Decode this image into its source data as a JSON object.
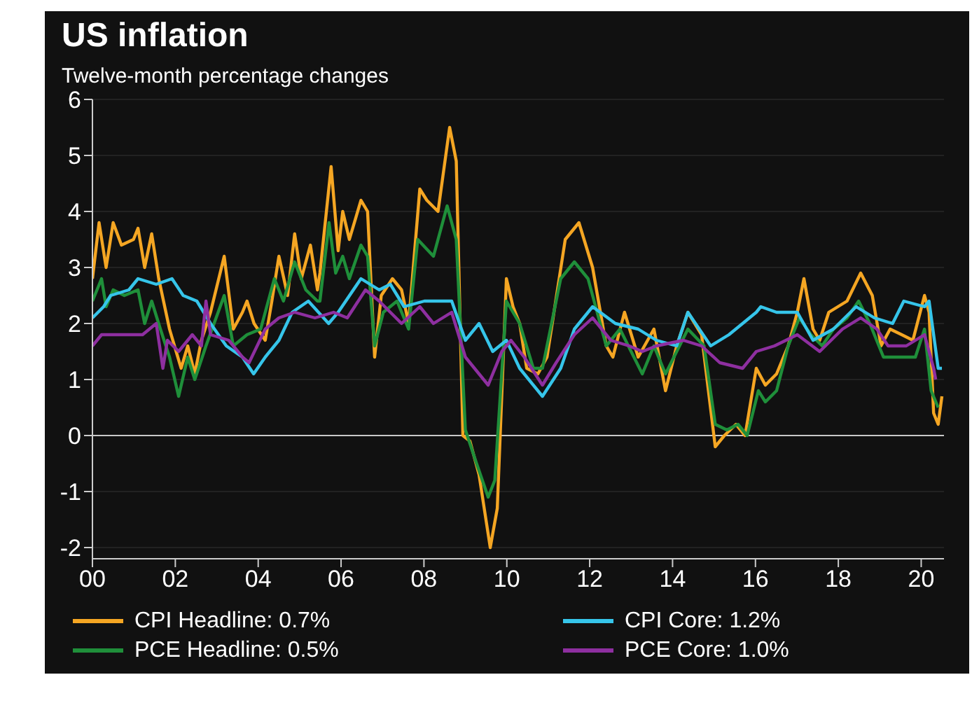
{
  "chart_data": {
    "type": "line",
    "title": "US inflation",
    "subtitle": "Twelve-month percentage changes",
    "xlim": [
      2000,
      2020.55
    ],
    "ylim": [
      -2.2,
      6
    ],
    "xticks": [
      {
        "value": 2000,
        "label": "00"
      },
      {
        "value": 2002,
        "label": "02"
      },
      {
        "value": 2004,
        "label": "04"
      },
      {
        "value": 2006,
        "label": "06"
      },
      {
        "value": 2008,
        "label": "08"
      },
      {
        "value": 2010,
        "label": "10"
      },
      {
        "value": 2012,
        "label": "12"
      },
      {
        "value": 2014,
        "label": "14"
      },
      {
        "value": 2016,
        "label": "16"
      },
      {
        "value": 2018,
        "label": "18"
      },
      {
        "value": 2020,
        "label": "20"
      }
    ],
    "yticks": [
      -2,
      -1,
      0,
      1,
      2,
      3,
      4,
      5,
      6
    ],
    "grid": "y",
    "legend": "bottom",
    "ref_lines": [
      {
        "axis": "y",
        "value": 0,
        "color": "#c8c8c8"
      }
    ],
    "series": [
      {
        "name": "CPI Headline: 0.7%",
        "color": "#f5a623",
        "x": [
          2000,
          2000.16,
          2000.33,
          2000.5,
          2000.7,
          2000.99,
          2001.1,
          2001.26,
          2001.43,
          2001.6,
          2001.86,
          2002.14,
          2002.3,
          2002.47,
          2002.63,
          2002.85,
          2003.18,
          2003.4,
          2003.62,
          2003.73,
          2003.9,
          2004.17,
          2004.33,
          2004.5,
          2004.71,
          2004.88,
          2005.04,
          2005.26,
          2005.43,
          2005.49,
          2005.76,
          2005.93,
          2006.04,
          2006.2,
          2006.48,
          2006.64,
          2006.81,
          2006.97,
          2007.24,
          2007.46,
          2007.63,
          2007.9,
          2008.07,
          2008.34,
          2008.62,
          2008.78,
          2008.94,
          2009.11,
          2009.33,
          2009.6,
          2009.77,
          2009.99,
          2010.15,
          2010.31,
          2010.48,
          2010.75,
          2010.97,
          2011.41,
          2011.74,
          2012.07,
          2012.4,
          2012.56,
          2012.84,
          2013.17,
          2013.55,
          2013.83,
          2014.1,
          2014.37,
          2014.7,
          2015.03,
          2015.25,
          2015.53,
          2015.75,
          2016.02,
          2016.24,
          2016.51,
          2016.79,
          2017.01,
          2017.17,
          2017.39,
          2017.55,
          2017.77,
          2018.21,
          2018.54,
          2018.82,
          2019.03,
          2019.25,
          2019.53,
          2019.8,
          2020.08,
          2020.19,
          2020.3,
          2020.41,
          2020.5
        ],
        "values": [
          2.8,
          3.8,
          3,
          3.8,
          3.4,
          3.5,
          3.7,
          3,
          3.6,
          2.8,
          1.9,
          1.2,
          1.6,
          1.1,
          1.7,
          2.2,
          3.2,
          1.9,
          2.2,
          2.4,
          2,
          1.7,
          2.4,
          3.2,
          2.5,
          3.6,
          2.8,
          3.4,
          2.6,
          2.9,
          4.8,
          3.3,
          4,
          3.5,
          4.2,
          4,
          1.4,
          2.5,
          2.8,
          2.6,
          2,
          4.4,
          4.2,
          4,
          5.5,
          4.9,
          0,
          -0.1,
          -0.7,
          -2,
          -1.3,
          2.8,
          2.3,
          2,
          1.2,
          1.1,
          1.4,
          3.5,
          3.8,
          3,
          1.6,
          1.4,
          2.2,
          1.4,
          1.9,
          0.8,
          1.6,
          2.2,
          1.8,
          -0.2,
          0,
          0.2,
          0,
          1.2,
          0.9,
          1.1,
          1.6,
          2.2,
          2.8,
          1.9,
          1.7,
          2.2,
          2.4,
          2.9,
          2.5,
          1.6,
          1.9,
          1.8,
          1.7,
          2.5,
          2.2,
          0.4,
          0.2,
          0.7
        ]
      },
      {
        "name": "PCE Headline: 0.5%",
        "color": "#1f8f3a",
        "x": [
          2000,
          2000.22,
          2000.33,
          2000.5,
          2000.77,
          2001.1,
          2001.26,
          2001.43,
          2001.64,
          2001.86,
          2002.08,
          2002.3,
          2002.47,
          2002.74,
          2003.18,
          2003.4,
          2003.73,
          2004.06,
          2004.39,
          2004.61,
          2004.88,
          2005.15,
          2005.43,
          2005.49,
          2005.71,
          2005.87,
          2006.04,
          2006.2,
          2006.48,
          2006.64,
          2006.81,
          2007.02,
          2007.35,
          2007.63,
          2007.85,
          2008.23,
          2008.56,
          2008.78,
          2009,
          2009.27,
          2009.55,
          2009.71,
          2009.99,
          2010.31,
          2010.64,
          2010.86,
          2011.3,
          2011.63,
          2011.96,
          2012.4,
          2012.73,
          2013.27,
          2013.55,
          2013.83,
          2014.1,
          2014.37,
          2014.76,
          2015.03,
          2015.31,
          2015.58,
          2015.8,
          2016.07,
          2016.24,
          2016.51,
          2016.79,
          2017.06,
          2017.34,
          2017.61,
          2017.88,
          2018.21,
          2018.49,
          2018.76,
          2019.09,
          2019.42,
          2019.86,
          2020.08,
          2020.24,
          2020.41
        ],
        "values": [
          2.4,
          2.8,
          2.3,
          2.6,
          2.5,
          2.6,
          2,
          2.4,
          1.9,
          1.4,
          0.7,
          1.4,
          1,
          1.6,
          2.5,
          1.6,
          1.8,
          1.9,
          2.8,
          2.4,
          3.1,
          2.6,
          2.4,
          2.4,
          3.8,
          2.9,
          3.2,
          2.8,
          3.4,
          3.2,
          1.6,
          2.2,
          2.4,
          1.9,
          3.5,
          3.2,
          4.1,
          3.5,
          0.1,
          -0.5,
          -1.1,
          -0.8,
          2.4,
          2,
          1.2,
          1.2,
          2.8,
          3.1,
          2.8,
          1.6,
          1.9,
          1.1,
          1.6,
          1.1,
          1.5,
          1.9,
          1.6,
          0.2,
          0.1,
          0.2,
          0,
          0.8,
          0.6,
          0.8,
          1.6,
          2.1,
          1.8,
          1.6,
          1.9,
          2.1,
          2.4,
          2,
          1.4,
          1.4,
          1.4,
          1.9,
          0.8,
          0.5
        ]
      },
      {
        "name": "CPI Core: 1.2%",
        "color": "#36c5ea",
        "x": [
          2000,
          2000.27,
          2000.44,
          2000.88,
          2001.1,
          2001.54,
          2001.92,
          2002.19,
          2002.52,
          2002.85,
          2003.23,
          2003.62,
          2003.89,
          2004.17,
          2004.5,
          2004.82,
          2005.21,
          2005.7,
          2005.93,
          2006.48,
          2006.92,
          2007.19,
          2007.52,
          2008.01,
          2008.67,
          2009,
          2009.33,
          2009.66,
          2009.99,
          2010.31,
          2010.86,
          2011.3,
          2011.63,
          2012.07,
          2012.62,
          2013.17,
          2013.61,
          2014.1,
          2014.37,
          2014.92,
          2015.36,
          2016.02,
          2016.13,
          2016.51,
          2017.01,
          2017.39,
          2017.88,
          2018.43,
          2018.87,
          2019.31,
          2019.58,
          2020.08,
          2020.19,
          2020.41,
          2020.5
        ],
        "values": [
          2.1,
          2.3,
          2.5,
          2.6,
          2.8,
          2.7,
          2.8,
          2.5,
          2.4,
          2,
          1.6,
          1.4,
          1.1,
          1.4,
          1.7,
          2.2,
          2.4,
          2,
          2.2,
          2.8,
          2.6,
          2.7,
          2.3,
          2.4,
          2.4,
          1.7,
          2,
          1.5,
          1.7,
          1.2,
          0.7,
          1.2,
          1.9,
          2.3,
          2,
          1.9,
          1.7,
          1.6,
          2.2,
          1.6,
          1.8,
          2.2,
          2.3,
          2.2,
          2.2,
          1.7,
          1.9,
          2.3,
          2.1,
          2,
          2.4,
          2.3,
          2.4,
          1.2,
          1.2
        ]
      },
      {
        "name": "PCE Core: 1.0%",
        "color": "#8e2fa0",
        "x": [
          2000,
          2000.22,
          2000.66,
          2001.21,
          2001.54,
          2001.7,
          2001.81,
          2002.08,
          2002.41,
          2002.63,
          2002.74,
          2002.85,
          2003.29,
          2003.62,
          2003.78,
          2004.17,
          2004.5,
          2004.88,
          2005.37,
          2005.82,
          2006.15,
          2006.59,
          2006.92,
          2007.46,
          2007.9,
          2008.23,
          2008.67,
          2009,
          2009.33,
          2009.55,
          2009.88,
          2010.1,
          2010.42,
          2010.86,
          2011.19,
          2011.63,
          2012.07,
          2012.51,
          2012.95,
          2013.27,
          2013.61,
          2014.26,
          2014.7,
          2015.14,
          2015.69,
          2016.02,
          2016.46,
          2017.01,
          2017.55,
          2018.1,
          2018.54,
          2018.93,
          2019.2,
          2019.64,
          2020.08,
          2020.3,
          2020.35
        ],
        "values": [
          1.6,
          1.8,
          1.8,
          1.8,
          2,
          1.2,
          1.7,
          1.5,
          1.8,
          1.6,
          2.4,
          1.8,
          1.7,
          1.4,
          1.3,
          1.9,
          2.1,
          2.2,
          2.1,
          2.2,
          2.1,
          2.6,
          2.4,
          2,
          2.3,
          2,
          2.2,
          1.4,
          1.1,
          0.9,
          1.5,
          1.7,
          1.4,
          0.9,
          1.3,
          1.8,
          2.1,
          1.7,
          1.6,
          1.5,
          1.6,
          1.7,
          1.6,
          1.3,
          1.2,
          1.5,
          1.6,
          1.8,
          1.5,
          1.9,
          2.1,
          1.9,
          1.6,
          1.6,
          1.8,
          1.2,
          1
        ]
      }
    ]
  }
}
